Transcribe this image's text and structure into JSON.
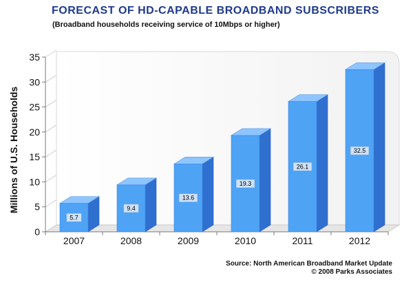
{
  "chart_data": {
    "type": "bar",
    "title": "FORECAST OF HD-CAPABLE BROADBAND SUBSCRIBERS",
    "subtitle": "(Broadband households receiving service of 10Mbps or higher)",
    "xlabel": "",
    "ylabel": "Millions of U.S. Households",
    "categories": [
      "2007",
      "2008",
      "2009",
      "2010",
      "2011",
      "2012"
    ],
    "values": [
      5.7,
      9.4,
      13.6,
      19.3,
      26.1,
      32.5
    ],
    "data_labels": [
      "5.7",
      "9.4",
      "13.6",
      "19.3",
      "26.1",
      "32.5"
    ],
    "ylim": [
      0,
      35
    ],
    "yticks": [
      0,
      5,
      10,
      15,
      20,
      25,
      30,
      35
    ],
    "bar_color": "#4ea3f5",
    "source_line1": "Source: North American Broadband Market Update",
    "source_line2": "© 2008 Parks Associates"
  }
}
